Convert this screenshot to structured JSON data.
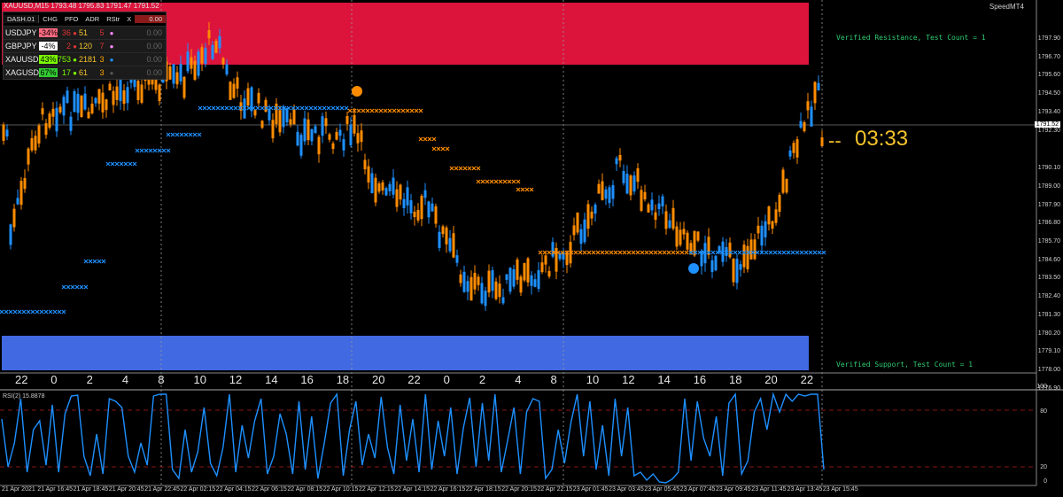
{
  "chart": {
    "title": "XAUUSD,M15  1793.48 1795.83 1791.47 1791.52",
    "broker_label": "SpeedMT4",
    "price_labels": [
      "1797.90",
      "1796.70",
      "1795.60",
      "1794.50",
      "1793.40",
      "1792.30",
      "1790.10",
      "1789.00",
      "1787.90",
      "1786.80",
      "1785.70",
      "1784.60",
      "1783.50",
      "1782.40",
      "1781.30",
      "1780.20",
      "1779.10",
      "1778.00",
      "1776.90"
    ],
    "last_price": "1791.52",
    "hour_labels": [
      "22",
      "0",
      "2",
      "4",
      "8",
      "10",
      "12",
      "14",
      "16",
      "18",
      "20",
      "22",
      "0",
      "2",
      "4",
      "8",
      "10",
      "12",
      "14",
      "16",
      "18",
      "20",
      "22"
    ],
    "date_labels": [
      "21 Apr 2021",
      "21 Apr 16:45",
      "21 Apr 18:45",
      "21 Apr 20:45",
      "21 Apr 22:45",
      "22 Apr 02:15",
      "22 Apr 04:15",
      "22 Apr 06:15",
      "22 Apr 08:15",
      "22 Apr 10:15",
      "22 Apr 12:15",
      "22 Apr 14:15",
      "22 Apr 16:15",
      "22 Apr 18:15",
      "22 Apr 20:15",
      "22 Apr 22:15",
      "23 Apr 01:45",
      "23 Apr 03:45",
      "23 Apr 05:45",
      "23 Apr 07:45",
      "23 Apr 09:45",
      "23 Apr 11:45",
      "23 Apr 13:45",
      "23 Apr 15:45"
    ],
    "countdown_dash": "--",
    "countdown": "03:33",
    "resistance_text": "Verified Resistance, Test Count = 1",
    "support_text": "Verified Support, Test Count = 1",
    "resistance_color": "#dc143c",
    "support_color": "#4169e1",
    "bull_color": "#1e90ff",
    "bear_color": "#ff8c00"
  },
  "dashboard": {
    "name": "DASH.01",
    "headers": [
      "CHG",
      "PFO",
      "ADR",
      "RStr",
      "X"
    ],
    "header_value": "0.00",
    "rows": [
      {
        "symbol": "USDJPY",
        "chg": "-34%",
        "chg_color": "#ff6b81",
        "pfo": "36",
        "pfo_color": "#d33",
        "adr": "51",
        "rstr": "5",
        "rstr_color": "#d33",
        "dot_color": "#ff88ff",
        "value": "0.00"
      },
      {
        "symbol": "GBPJPY",
        "chg": "-4%",
        "chg_color": "#ffffff",
        "pfo": "2",
        "pfo_color": "#d33",
        "adr": "120",
        "rstr": "7",
        "rstr_color": "#d33",
        "dot_color": "#ff88ff",
        "value": "0.00"
      },
      {
        "symbol": "XAUUSD",
        "chg": "43%",
        "chg_color": "#7cfc00",
        "pfo": "753",
        "pfo_color": "#7cfc00",
        "adr": "2181",
        "rstr": "3",
        "rstr_color": "#ffa500",
        "dot_color": "#1e90ff",
        "value": "0.00"
      },
      {
        "symbol": "XAGUSD",
        "chg": "67%",
        "chg_color": "#32cd32",
        "pfo": "17",
        "pfo_color": "#7cfc00",
        "adr": "61",
        "rstr": "3",
        "rstr_color": "#ffa500",
        "dot_color": "#555555",
        "value": "0.00"
      }
    ]
  },
  "rsi": {
    "label": "RSI(2) 15.8878",
    "levels": [
      "100",
      "80",
      "20",
      "0"
    ],
    "values": [
      72,
      18,
      45,
      95,
      12,
      60,
      70,
      20,
      88,
      12,
      78,
      98,
      99,
      30,
      8,
      55,
      10,
      95,
      92,
      85,
      30,
      12,
      45,
      20,
      98,
      100,
      100,
      15,
      5,
      60,
      12,
      35,
      85,
      22,
      8,
      40,
      100,
      12,
      65,
      28,
      70,
      95,
      10,
      30,
      78,
      55,
      10,
      92,
      15,
      75,
      5,
      45,
      90,
      100,
      8,
      60,
      92,
      20,
      55,
      28,
      97,
      40,
      10,
      88,
      25,
      72,
      12,
      100,
      15,
      70,
      30,
      85,
      10,
      62,
      96,
      18,
      90,
      25,
      100,
      12,
      48,
      85,
      10,
      80,
      95,
      92,
      5,
      15,
      60,
      22,
      68,
      100,
      30,
      92,
      15,
      65,
      8,
      95,
      30,
      85,
      8,
      12,
      3,
      10,
      1,
      0,
      4,
      12,
      95,
      25,
      92,
      50,
      30,
      75,
      8,
      90,
      100,
      10,
      25,
      80,
      95,
      60,
      100,
      80,
      100,
      92,
      100,
      98,
      100,
      100,
      15
    ]
  }
}
